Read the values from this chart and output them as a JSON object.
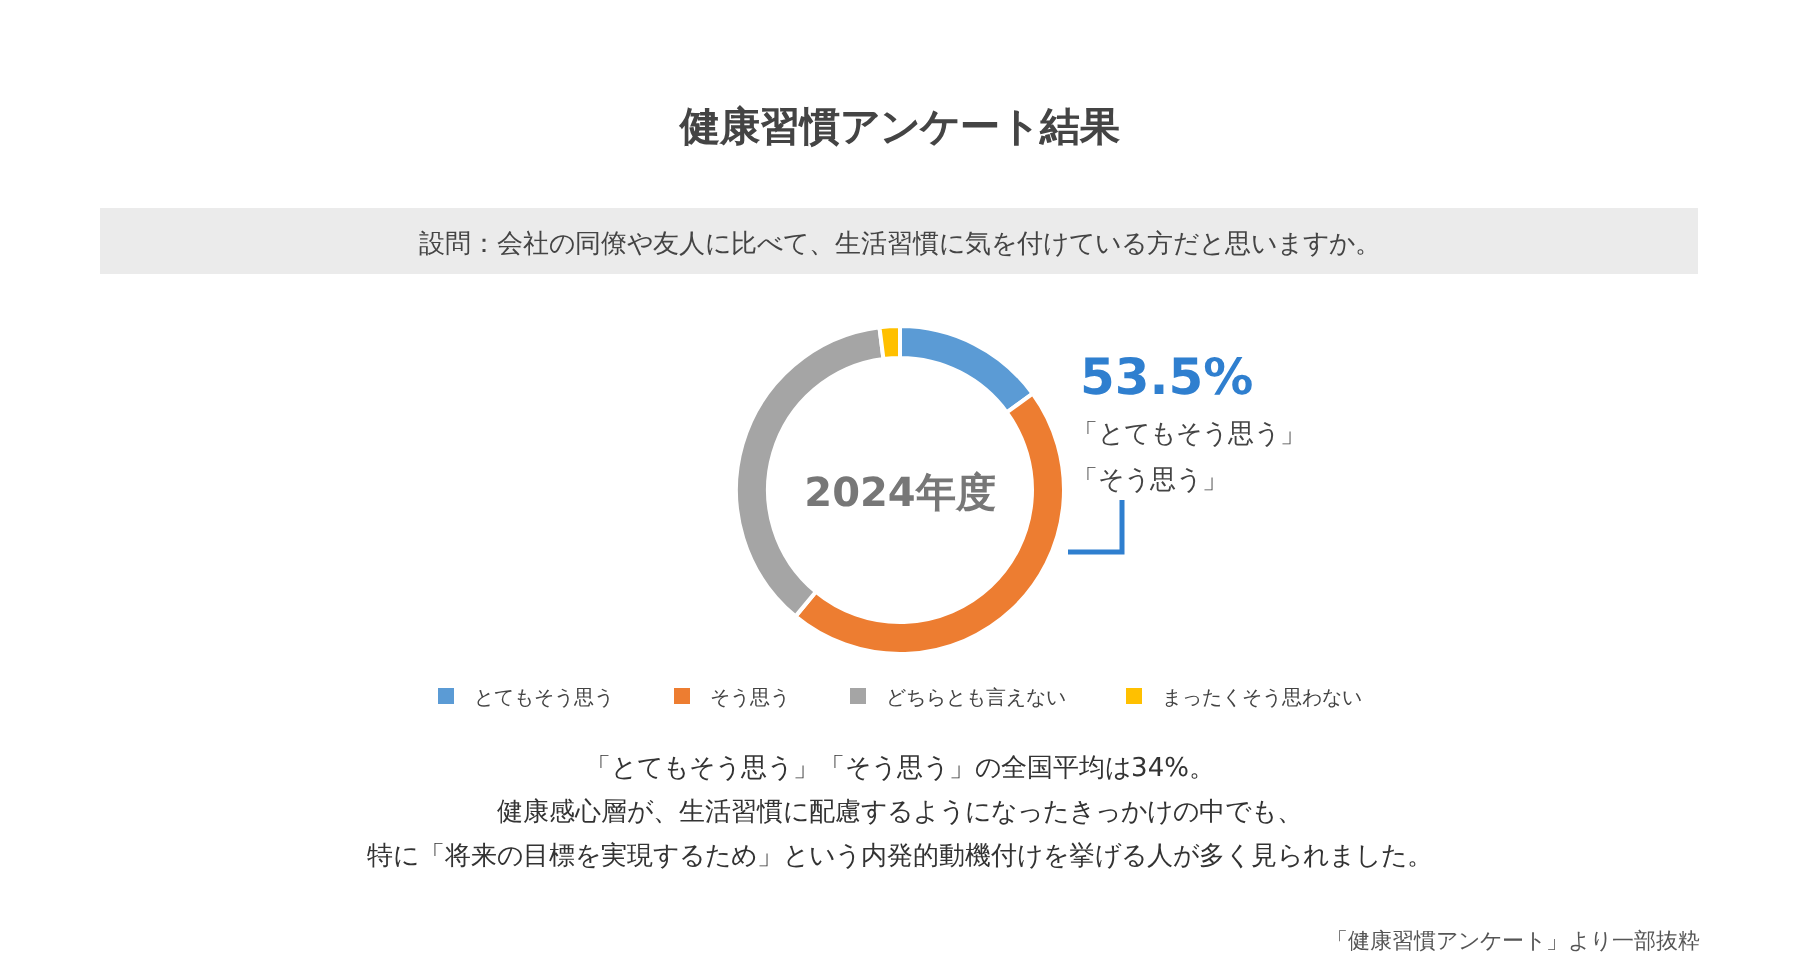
{
  "chart_data": {
    "type": "donut",
    "title": "健康習慣アンケート結果",
    "subtitle": "設問：会社の同僚や友人に比べて、生活習慣に気を付けている方だと思いますか。",
    "categories": [
      "とてもそう思う",
      "そう思う",
      "どちらとも言えない",
      "まったくそう思わない"
    ],
    "values": [
      15,
      46,
      37,
      2
    ],
    "colors": [
      "#5b9bd5",
      "#ed7d31",
      "#a5a5a5",
      "#ffc000"
    ],
    "legend": "bottom",
    "annotations": [
      "2024年度",
      "53.5%",
      "「とてもそう思う」",
      "「そう思う」",
      "「とてもそう思う」「そう思う」の全国平均は34%。",
      "健康感心層が、生活習慣に配慮するようになったきっかけの中でも、",
      "特に「将来の目標を実現するため」という内発的動機付けを挙げる人が多く見られました。",
      "「健康習慣アンケート」より一部抜粋"
    ]
  }
}
